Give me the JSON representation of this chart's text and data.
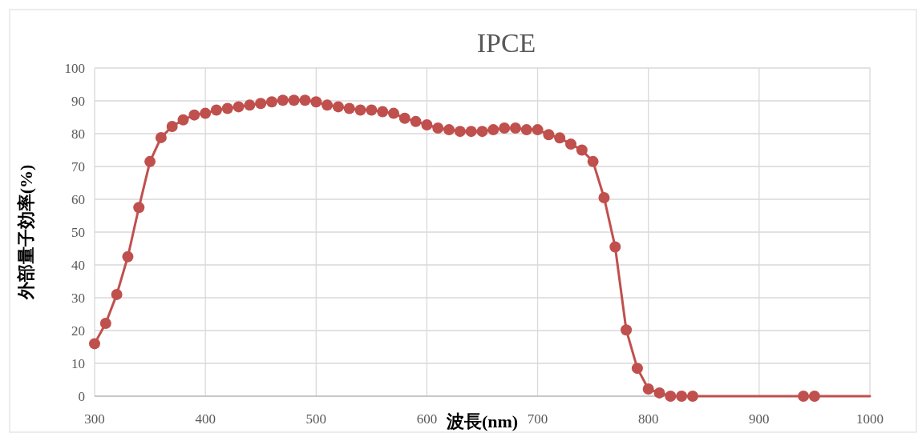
{
  "chart_data": {
    "type": "line",
    "title": "IPCE",
    "xlabel": "波長(nm)",
    "ylabel": "外部量子効率(%)",
    "xlim": [
      300,
      1000
    ],
    "xticks": [
      300,
      400,
      500,
      600,
      700,
      800,
      900,
      1000
    ],
    "ylim": [
      0,
      100
    ],
    "yticks": [
      0,
      10,
      20,
      30,
      40,
      50,
      60,
      70,
      80,
      90,
      100
    ],
    "grid": true,
    "series": [
      {
        "marker": "none",
        "color": "#c0504d",
        "x": [
          300,
          310,
          320,
          330,
          340,
          350,
          360,
          370,
          380,
          390,
          400,
          410,
          420,
          430,
          440,
          450,
          460,
          470,
          480,
          490,
          500,
          510,
          520,
          530,
          540,
          550,
          560,
          570,
          580,
          590,
          600,
          610,
          620,
          630,
          640,
          650,
          660,
          670,
          680,
          690,
          700,
          710,
          720,
          730,
          740,
          750,
          760,
          770,
          780,
          790,
          800,
          810,
          820,
          830,
          840,
          850,
          860,
          870,
          880,
          890,
          900,
          910,
          920,
          930,
          940,
          950,
          960,
          970,
          980,
          990,
          1000
        ],
        "values": [
          16,
          22.2,
          31,
          42.5,
          57.5,
          71.5,
          78.8,
          82.2,
          84.2,
          85.7,
          86.2,
          87.2,
          87.7,
          88.2,
          88.7,
          89.2,
          89.7,
          90.2,
          90.2,
          90.2,
          89.7,
          88.7,
          88.2,
          87.7,
          87.2,
          87.2,
          86.7,
          86.2,
          84.7,
          83.7,
          82.7,
          81.7,
          81.2,
          80.7,
          80.7,
          80.7,
          81.2,
          81.7,
          81.7,
          81.2,
          81.2,
          79.7,
          78.7,
          76.8,
          75,
          71.5,
          60.5,
          45.5,
          20.2,
          8.5,
          2.2,
          1,
          0,
          0,
          0,
          0,
          0,
          0,
          0,
          0,
          0,
          0,
          0,
          0,
          0,
          0,
          0,
          0,
          0,
          0,
          0
        ]
      },
      {
        "type": "scatter",
        "marker": "circle",
        "color": "#c0504d",
        "x": [
          300,
          310,
          320,
          330,
          340,
          350,
          360,
          370,
          380,
          390,
          400,
          410,
          420,
          430,
          440,
          450,
          460,
          470,
          480,
          490,
          500,
          510,
          520,
          530,
          540,
          550,
          560,
          570,
          580,
          590,
          600,
          610,
          620,
          630,
          640,
          650,
          660,
          670,
          680,
          690,
          700,
          710,
          720,
          730,
          740,
          750,
          760,
          770,
          780,
          790,
          800,
          810,
          820,
          830,
          840,
          940,
          950
        ],
        "values": [
          16,
          22.2,
          31,
          42.5,
          57.5,
          71.5,
          78.8,
          82.2,
          84.2,
          85.7,
          86.2,
          87.2,
          87.7,
          88.2,
          88.7,
          89.2,
          89.7,
          90.2,
          90.2,
          90.2,
          89.7,
          88.7,
          88.2,
          87.7,
          87.2,
          87.2,
          86.7,
          86.2,
          84.7,
          83.7,
          82.7,
          81.7,
          81.2,
          80.7,
          80.7,
          80.7,
          81.2,
          81.7,
          81.7,
          81.2,
          81.2,
          79.7,
          78.7,
          76.8,
          75,
          71.5,
          60.5,
          45.5,
          20.2,
          8.5,
          2.2,
          1,
          0,
          0,
          0,
          0,
          0
        ]
      }
    ]
  }
}
